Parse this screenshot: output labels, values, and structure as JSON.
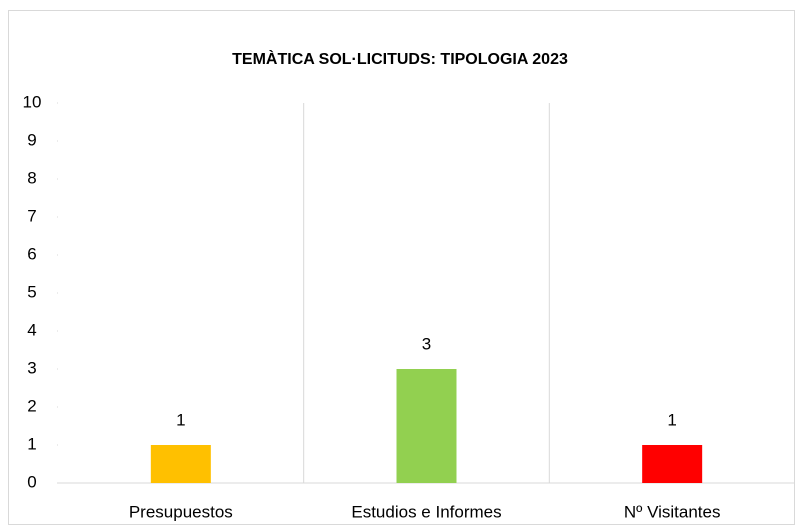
{
  "chart_data": {
    "type": "bar",
    "title": "TEMÀTICA SOL·LICITUDS: TIPOLOGIA 2023",
    "categories": [
      "Presupuestos",
      "Estudios e Informes",
      "Nº Visitantes"
    ],
    "values": [
      1,
      3,
      1
    ],
    "colors": [
      "#ffc000",
      "#92d050",
      "#ff0000"
    ],
    "ylim": [
      0,
      10
    ],
    "yticks": [
      0,
      1,
      2,
      3,
      4,
      5,
      6,
      7,
      8,
      9,
      10
    ]
  }
}
